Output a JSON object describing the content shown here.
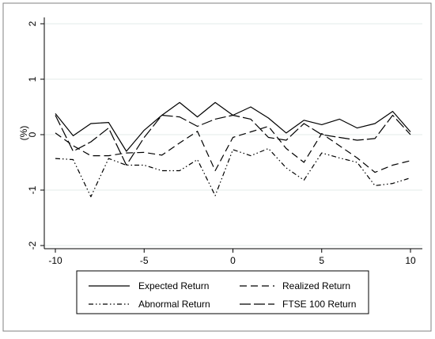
{
  "chart_data": {
    "type": "line",
    "title": "",
    "xlabel": "",
    "ylabel": "(%)",
    "xlim": [
      -10,
      10
    ],
    "ylim": [
      -2,
      2
    ],
    "x_ticks": [
      "-10",
      "-5",
      "0",
      "5",
      "10"
    ],
    "y_ticks": [
      "-2",
      "-1",
      "0",
      "1",
      "2"
    ],
    "grid": "horizontal",
    "legend_position": "bottom",
    "x": [
      -10,
      -9,
      -8,
      -7,
      -6,
      -5,
      -4,
      -3,
      -2,
      -1,
      0,
      1,
      2,
      3,
      4,
      5,
      6,
      7,
      8,
      9,
      10
    ],
    "series": [
      {
        "name": "Expected Return",
        "style": "solid",
        "values": [
          0.38,
          -0.02,
          0.2,
          0.22,
          -0.3,
          0.08,
          0.35,
          0.58,
          0.32,
          0.58,
          0.35,
          0.5,
          0.3,
          0.03,
          0.26,
          0.18,
          0.28,
          0.12,
          0.2,
          0.42,
          0.05
        ]
      },
      {
        "name": "Realized Return",
        "style": "dashed",
        "values": [
          0.03,
          -0.2,
          -0.38,
          -0.38,
          -0.33,
          -0.32,
          -0.37,
          -0.15,
          0.06,
          -0.65,
          -0.05,
          0.05,
          0.15,
          -0.25,
          -0.5,
          0.02,
          -0.2,
          -0.42,
          -0.68,
          -0.55,
          -0.47
        ]
      },
      {
        "name": "Abnormal Return",
        "style": "dash-dot-dot",
        "values": [
          -0.43,
          -0.45,
          -1.12,
          -0.43,
          -0.55,
          -0.55,
          -0.65,
          -0.65,
          -0.45,
          -1.1,
          -0.27,
          -0.38,
          -0.25,
          -0.6,
          -0.82,
          -0.33,
          -0.42,
          -0.5,
          -0.92,
          -0.88,
          -0.78
        ]
      },
      {
        "name": "FTSE 100 Return",
        "style": "long-dash",
        "values": [
          0.35,
          -0.3,
          -0.13,
          0.12,
          -0.55,
          -0.05,
          0.35,
          0.32,
          0.15,
          0.28,
          0.35,
          0.28,
          -0.05,
          -0.1,
          0.2,
          0.0,
          -0.05,
          -0.1,
          -0.07,
          0.35,
          0.0
        ]
      }
    ],
    "colors": {
      "line": "#000000",
      "grid": "#e3ebea",
      "plot_background": "#ffffff",
      "outer_frame": "#808080"
    }
  }
}
